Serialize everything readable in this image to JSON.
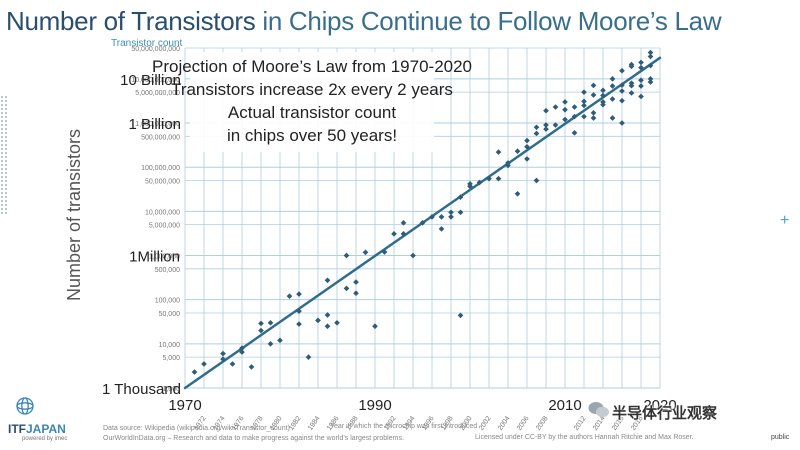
{
  "slide": {
    "title_part1": "Number of Transistors",
    "title_part2": " in Chips Continue to Follow Moore’s Law",
    "colors": {
      "title_dark": "#2a4f6e",
      "title_light": "#3a6f8c",
      "trend": "#2f6d8e",
      "points": "#2f5c7a",
      "grid": "#aecfe0"
    }
  },
  "logo": {
    "name_part1": "ITF",
    "name_part2": "JAPAN",
    "tagline": "powered by imec"
  },
  "source": {
    "line1": "Data source: Wikipedia (wikipedia.org/wiki/Transistor_count)",
    "line2": "OurWorldInData.org – Research and data to make progress against the world’s largest problems.",
    "license": "Licensed under CC-BY by the authors Hannah Ritchie and Max Roser.",
    "xaxis_caption": "Year in which the microchip was first introduced"
  },
  "watermark": {
    "text": "半导体行业观察",
    "icon": "wechat-icon"
  },
  "classification": "public",
  "chart_data": {
    "type": "scatter",
    "title": "Transistor count",
    "ylabel": "Number of transistors",
    "xlabel": "",
    "y_scale": "log",
    "xlim": [
      1970,
      2020
    ],
    "ylim": [
      1000,
      50000000000
    ],
    "grid": true,
    "x_ticks_small": [
      "1972",
      "1974",
      "1976",
      "1978",
      "1980",
      "1982",
      "1984",
      "1986",
      "1988",
      "1992",
      "1994",
      "1996",
      "1998",
      "2000",
      "2002",
      "2004",
      "2006",
      "2008",
      "2012",
      "2014",
      "2016",
      "2018"
    ],
    "x_ticks_big": [
      "1970",
      "1990",
      "2010",
      "2020"
    ],
    "y_ticks_small": [
      "50,000,000,000",
      "10,000,000,000",
      "5,000,000,000",
      "1,000,000,000",
      "500,000,000",
      "100,000,000",
      "50,000,000",
      "10,000,000",
      "5,000,000",
      "1,000,000",
      "500,000",
      "100,000",
      "50,000",
      "10,000",
      "5,000",
      "1,000"
    ],
    "y_ticks_big": [
      "10 Billion",
      "1 Billion",
      "1Million",
      "1 Thousand"
    ],
    "annotations": [
      "Projection of Moore’s Law from 1970-2020",
      "Transistors increase 2x every 2 years",
      "Actual transistor count",
      "in chips over 50 years!"
    ],
    "trend": {
      "x": [
        1970,
        2020
      ],
      "y": [
        1000,
        30000000000
      ]
    },
    "points": [
      [
        1971,
        2300
      ],
      [
        1972,
        3500
      ],
      [
        1974,
        4500
      ],
      [
        1974,
        6000
      ],
      [
        1975,
        3500
      ],
      [
        1976,
        8000
      ],
      [
        1976,
        6500
      ],
      [
        1977,
        3000
      ],
      [
        1978,
        20000
      ],
      [
        1978,
        29000
      ],
      [
        1979,
        30000
      ],
      [
        1979,
        10000
      ],
      [
        1980,
        12000
      ],
      [
        1981,
        120000
      ],
      [
        1982,
        28000
      ],
      [
        1982,
        55000
      ],
      [
        1982,
        134000
      ],
      [
        1983,
        5000
      ],
      [
        1984,
        34000
      ],
      [
        1985,
        275000
      ],
      [
        1985,
        45000
      ],
      [
        1985,
        25000
      ],
      [
        1986,
        30000
      ],
      [
        1987,
        180000
      ],
      [
        1987,
        1000000
      ],
      [
        1988,
        250000
      ],
      [
        1988,
        140000
      ],
      [
        1989,
        1180000
      ],
      [
        1990,
        25000
      ],
      [
        1991,
        1200000
      ],
      [
        1992,
        3100000
      ],
      [
        1993,
        3100000
      ],
      [
        1993,
        5500000
      ],
      [
        1994,
        1000000
      ],
      [
        1995,
        5500000
      ],
      [
        1996,
        7500000
      ],
      [
        1997,
        4000000
      ],
      [
        1997,
        7500000
      ],
      [
        1998,
        9500000
      ],
      [
        1998,
        7500000
      ],
      [
        1999,
        21000000
      ],
      [
        1999,
        44000
      ],
      [
        1999,
        9500000
      ],
      [
        2000,
        42000000
      ],
      [
        2000,
        37000000
      ],
      [
        2001,
        45000000
      ],
      [
        2002,
        55000000
      ],
      [
        2003,
        55000000
      ],
      [
        2003,
        220000000
      ],
      [
        2004,
        125000000
      ],
      [
        2004,
        110000000
      ],
      [
        2005,
        230000000
      ],
      [
        2005,
        25000000
      ],
      [
        2006,
        290000000
      ],
      [
        2006,
        154000000
      ],
      [
        2006,
        400000000
      ],
      [
        2007,
        50000000
      ],
      [
        2007,
        580000000
      ],
      [
        2007,
        800000000
      ],
      [
        2008,
        730000000
      ],
      [
        2008,
        900000000
      ],
      [
        2008,
        1900000000
      ],
      [
        2009,
        900000000
      ],
      [
        2009,
        2300000000
      ],
      [
        2010,
        1200000000
      ],
      [
        2010,
        2000000000
      ],
      [
        2010,
        3000000000
      ],
      [
        2011,
        2300000000
      ],
      [
        2011,
        1400000000
      ],
      [
        2012,
        1400000000
      ],
      [
        2012,
        2500000000
      ],
      [
        2012,
        5000000000
      ],
      [
        2012,
        3100000000
      ],
      [
        2013,
        1300000000
      ],
      [
        2013,
        4300000000
      ],
      [
        2013,
        7100000000
      ],
      [
        2014,
        3000000000
      ],
      [
        2014,
        5500000000
      ],
      [
        2014,
        2600000000
      ],
      [
        2014,
        4200000000
      ],
      [
        2015,
        3500000000
      ],
      [
        2015,
        6900000000
      ],
      [
        2015,
        10000000000
      ],
      [
        2016,
        3200000000
      ],
      [
        2016,
        7200000000
      ],
      [
        2016,
        5300000000
      ],
      [
        2016,
        15300000000
      ],
      [
        2017,
        4800000000
      ],
      [
        2017,
        7000000000
      ],
      [
        2017,
        8000000000
      ],
      [
        2017,
        19200000000
      ],
      [
        2017,
        21000000000
      ],
      [
        2018,
        6900000000
      ],
      [
        2018,
        9300000000
      ],
      [
        2018,
        18000000000
      ],
      [
        2018,
        23600000000
      ],
      [
        2019,
        8500000000
      ],
      [
        2019,
        10000000000
      ],
      [
        2019,
        20000000000
      ],
      [
        2019,
        32000000000
      ],
      [
        2019,
        39500000000
      ],
      [
        2018,
        4000000000
      ],
      [
        2015,
        1300000000
      ],
      [
        2013,
        1700000000
      ],
      [
        2011,
        600000000
      ],
      [
        2016,
        1000000000
      ]
    ]
  }
}
